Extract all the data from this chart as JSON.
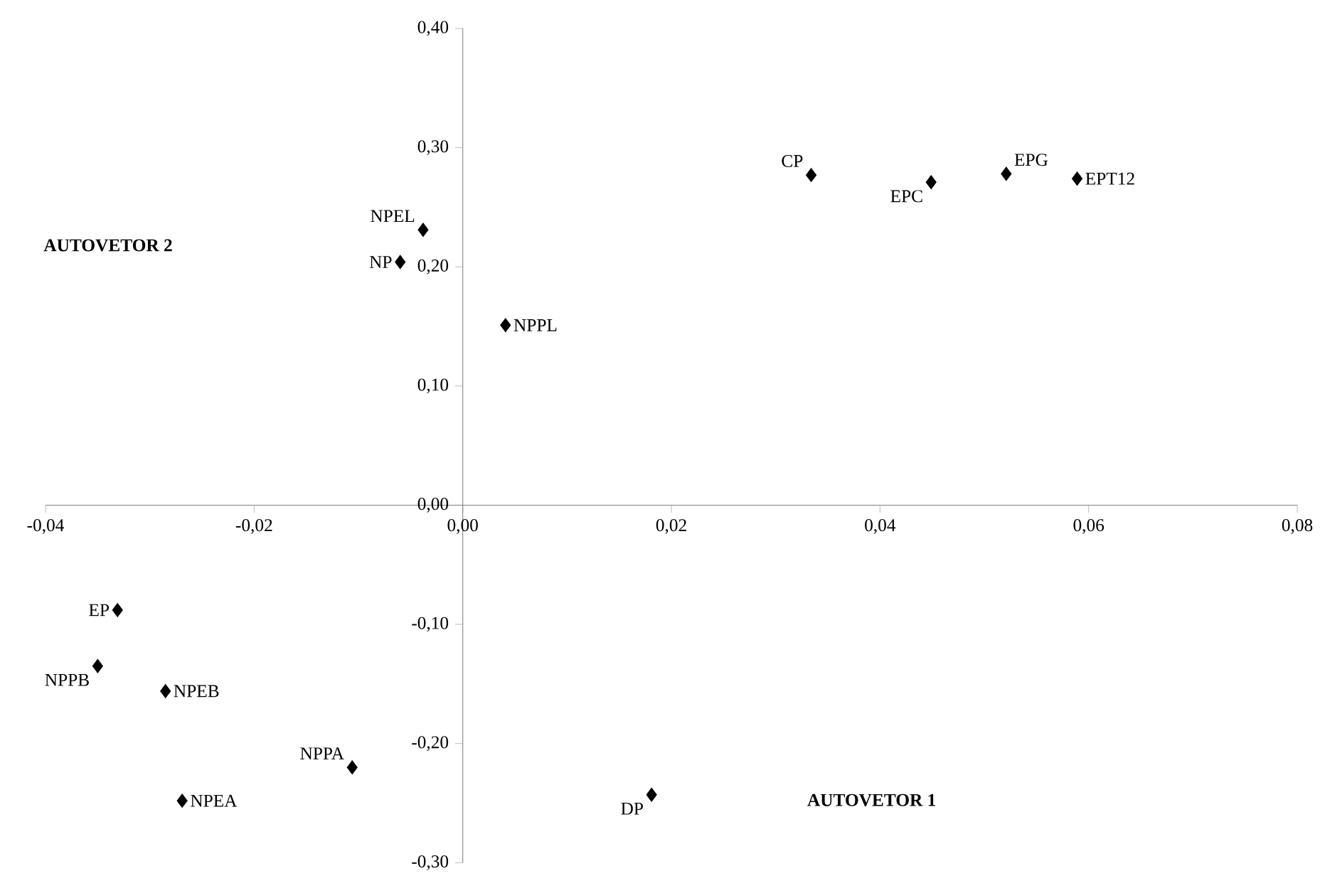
{
  "chart_data": {
    "type": "scatter",
    "xlabel": "AUTOVETOR 1",
    "ylabel": "AUTOVETOR 2",
    "color": "#000000",
    "marker": "diamond",
    "x": [
      0.0334,
      0.0449,
      0.0521,
      0.0589,
      -0.0038,
      -0.006,
      0.0041,
      -0.0331,
      -0.035,
      -0.0285,
      -0.0106,
      -0.0269,
      0.0181
    ],
    "values": [
      0.277,
      0.271,
      0.278,
      0.274,
      0.231,
      0.204,
      0.151,
      -0.088,
      -0.135,
      -0.156,
      -0.22,
      -0.248,
      -0.243
    ],
    "xlim": [
      -0.04,
      0.08
    ],
    "ylim": [
      -0.3,
      0.4
    ],
    "xticks": [
      {
        "value": -0.04,
        "label": "-0,04"
      },
      {
        "value": -0.02,
        "label": "-0,02"
      },
      {
        "value": 0,
        "label": "0,00"
      },
      {
        "value": 0.02,
        "label": "0,02"
      },
      {
        "value": 0.04,
        "label": "0,04"
      },
      {
        "value": 0.06,
        "label": "0,06"
      },
      {
        "value": 0.08,
        "label": "0,08"
      }
    ],
    "yticks": [
      {
        "value": -0.3,
        "label": "-0,30"
      },
      {
        "value": -0.2,
        "label": "-0,20"
      },
      {
        "value": -0.1,
        "label": "-0,10"
      },
      {
        "value": 0,
        "label": "0,00"
      },
      {
        "value": 0.1,
        "label": "0,10"
      },
      {
        "value": 0.2,
        "label": "0,20"
      },
      {
        "value": 0.3,
        "label": "0,30"
      },
      {
        "value": 0.4,
        "label": "0,40"
      }
    ],
    "annotations": [
      {
        "text": "CP",
        "x": 0.0334,
        "y": 0.277
      },
      {
        "text": "EPC",
        "x": 0.0449,
        "y": 0.271
      },
      {
        "text": "EPG",
        "x": 0.0521,
        "y": 0.278
      },
      {
        "text": "EPT12",
        "x": 0.0589,
        "y": 0.274
      },
      {
        "text": "NPEL",
        "x": -0.0038,
        "y": 0.231
      },
      {
        "text": "NP",
        "x": -0.006,
        "y": 0.204
      },
      {
        "text": "NPPL",
        "x": 0.0041,
        "y": 0.151
      },
      {
        "text": "EP",
        "x": -0.0331,
        "y": -0.088
      },
      {
        "text": "NPPB",
        "x": -0.035,
        "y": -0.135
      },
      {
        "text": "NPEB",
        "x": -0.0285,
        "y": -0.156
      },
      {
        "text": "NPPA",
        "x": -0.0106,
        "y": -0.22
      },
      {
        "text": "NPEA",
        "x": -0.0269,
        "y": -0.248
      },
      {
        "text": "DP",
        "x": 0.0181,
        "y": -0.243
      }
    ]
  }
}
